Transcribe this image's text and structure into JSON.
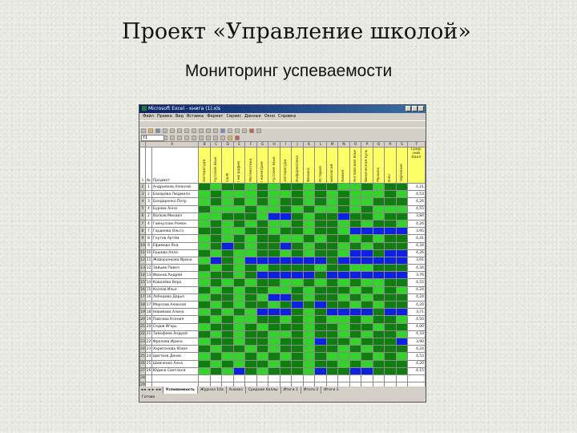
{
  "slide": {
    "title": "Проект «Управление школой»",
    "subtitle": "Мониторинг успеваемости"
  },
  "excel": {
    "window_title": "Microsoft Excel - книга (1).xls",
    "menu": [
      "Файл",
      "Правка",
      "Вид",
      "Вставка",
      "Формат",
      "Сервис",
      "Данные",
      "Окно",
      "Справка"
    ],
    "name_box": "Y1",
    "header_row": {
      "no_label": "№",
      "name_label": "Предмет",
      "score_label": "Сред-ний балл"
    },
    "columns": [
      "A",
      "B",
      "C",
      "D",
      "E",
      "F",
      "G",
      "H",
      "I",
      "J",
      "K",
      "L",
      "M",
      "N",
      "O",
      "P",
      "Q",
      "R",
      "S",
      "T"
    ],
    "subjects": [
      "Литература",
      "Русский язык",
      "ОБЖ",
      "География",
      "Математика",
      "Геометрия",
      "Русский язык",
      "Литература",
      "Информатика",
      "Физика",
      "История",
      "Биология",
      "Химия",
      "Английский язык",
      "Физическая культура",
      "Музыка",
      "ИЗО",
      "Черчение"
    ],
    "students": [
      {
        "row": "2",
        "idx": "1",
        "name": "Андриянов Алексей",
        "score": "4,21",
        "cells": "mlmmlmlmmlmmllmlmm"
      },
      {
        "row": "3",
        "idx": "2",
        "name": "Бахарева Людмила",
        "score": "4,53",
        "cells": "lmlllmllmlmlmlllml"
      },
      {
        "row": "4",
        "idx": "3",
        "name": "Бондаренко Петр",
        "score": "4,26",
        "cells": "lmlmlmlmmlmlmllmmm"
      },
      {
        "row": "5",
        "idx": "4",
        "name": "Бурова Анна",
        "score": "4,55",
        "cells": "mlllmllmlmllmlmlll"
      },
      {
        "row": "6",
        "idx": "2",
        "name": "Волков Михаил",
        "score": "3,84",
        "cells": "llmmmlbbmlmmbmmlmm"
      },
      {
        "row": "7",
        "idx": "4",
        "name": "Гайнуллин Роман",
        "score": "4,26",
        "cells": "lmlmlmllmlmmlmlmml"
      },
      {
        "row": "8",
        "idx": "7",
        "name": "Гордеева Ольга",
        "score": "3,95",
        "cells": "mmllmmlmmlmmlbbbbb"
      },
      {
        "row": "9",
        "idx": "8",
        "name": "Гнутов Артём",
        "score": "4,41",
        "cells": "lmlmlmmllmlmmlmlmm"
      },
      {
        "row": "10",
        "idx": "9",
        "name": "Ефимова Яна",
        "score": "4,34",
        "cells": "lmbmlmmbmlmmlmlmmm"
      },
      {
        "row": "11",
        "idx": "10",
        "name": "Ершова Алла",
        "score": "4,26",
        "cells": "mlmllmmlmlmmlbbmbb"
      },
      {
        "row": "12",
        "idx": "11",
        "name": "Жаворонкова Ирина",
        "score": "3,61",
        "cells": "lbmlbbbbbbbmbbbbbb"
      },
      {
        "row": "13",
        "idx": "12",
        "name": "Зайцев Павел",
        "score": "4,34",
        "cells": "mlmlmlmmmmlmmllmmm"
      },
      {
        "row": "14",
        "idx": "13",
        "name": "Иванов Андрей",
        "score": "3,76",
        "cells": "lmmlmbbbbbmbbbbbbb"
      },
      {
        "row": "15",
        "idx": "14",
        "name": "Ковалёва Вера",
        "score": "4,55",
        "cells": "lmlmlmmllmlmlmllmm"
      },
      {
        "row": "16",
        "idx": "15",
        "name": "Козлов Илья",
        "score": "4,24",
        "cells": "mlmlmmllmlmmmlmlml"
      },
      {
        "row": "17",
        "idx": "16",
        "name": "Лебедева Дарья",
        "score": "4,24",
        "cells": "lmmlmlbbmlmmlmlmmm"
      },
      {
        "row": "18",
        "idx": "17",
        "name": "Морозов Алексей",
        "score": "4,20",
        "cells": "mlmlmmlmbmbmmlmlmm"
      },
      {
        "row": "19",
        "idx": "18",
        "name": "Новикова Алина",
        "score": "3,71",
        "cells": "lmlmlbbbmlmbbbbmbb"
      },
      {
        "row": "20",
        "idx": "19",
        "name": "Павлова Ксения",
        "score": "4,50",
        "cells": "mlmllmmlmlmllmlmml"
      },
      {
        "row": "21",
        "idx": "20",
        "name": "Седов Игорь",
        "score": "4,00",
        "cells": "lmmlmlmmmlmmlmmlmm"
      },
      {
        "row": "22",
        "idx": "21",
        "name": "Тимофеев Андрей",
        "score": "4,33",
        "cells": "mlmlmmllmlmmlmlmml"
      },
      {
        "row": "23",
        "idx": "22",
        "name": "Фролова Ирина",
        "score": "3,90",
        "cells": "lmmlmmlmmlbmmlmmmb"
      },
      {
        "row": "24",
        "idx": "23",
        "name": "Харитонова Юлия",
        "score": "4,24",
        "cells": "mlmmlmlmmlmmlmlmmm"
      },
      {
        "row": "25",
        "idx": "24",
        "name": "Цветков Денис",
        "score": "4,53",
        "cells": "lmllmlmlmlmlllmlml"
      },
      {
        "row": "26",
        "idx": "25",
        "name": "Шевченко Анна",
        "score": "4,20",
        "cells": "mlmlmmlmmlmmlmlmmm"
      },
      {
        "row": "27",
        "idx": "26",
        "name": "Юдина Светлана",
        "score": "4,15",
        "cells": "lmlbmlmmmlbmmbbmmm"
      }
    ],
    "extra_rows": [
      "28",
      "29"
    ],
    "sheet_tabs": [
      "Успеваемость",
      "Журнал 10а",
      "Анализ",
      "Средние баллы",
      "Итоги 1",
      "Итоги 2",
      "Итоги 3"
    ],
    "status": "Готово",
    "colors": {
      "dark_green": "#0f7d0f",
      "light_green": "#35d12d",
      "blue": "#0c22e0",
      "header_yellow": "#ffff66"
    }
  }
}
